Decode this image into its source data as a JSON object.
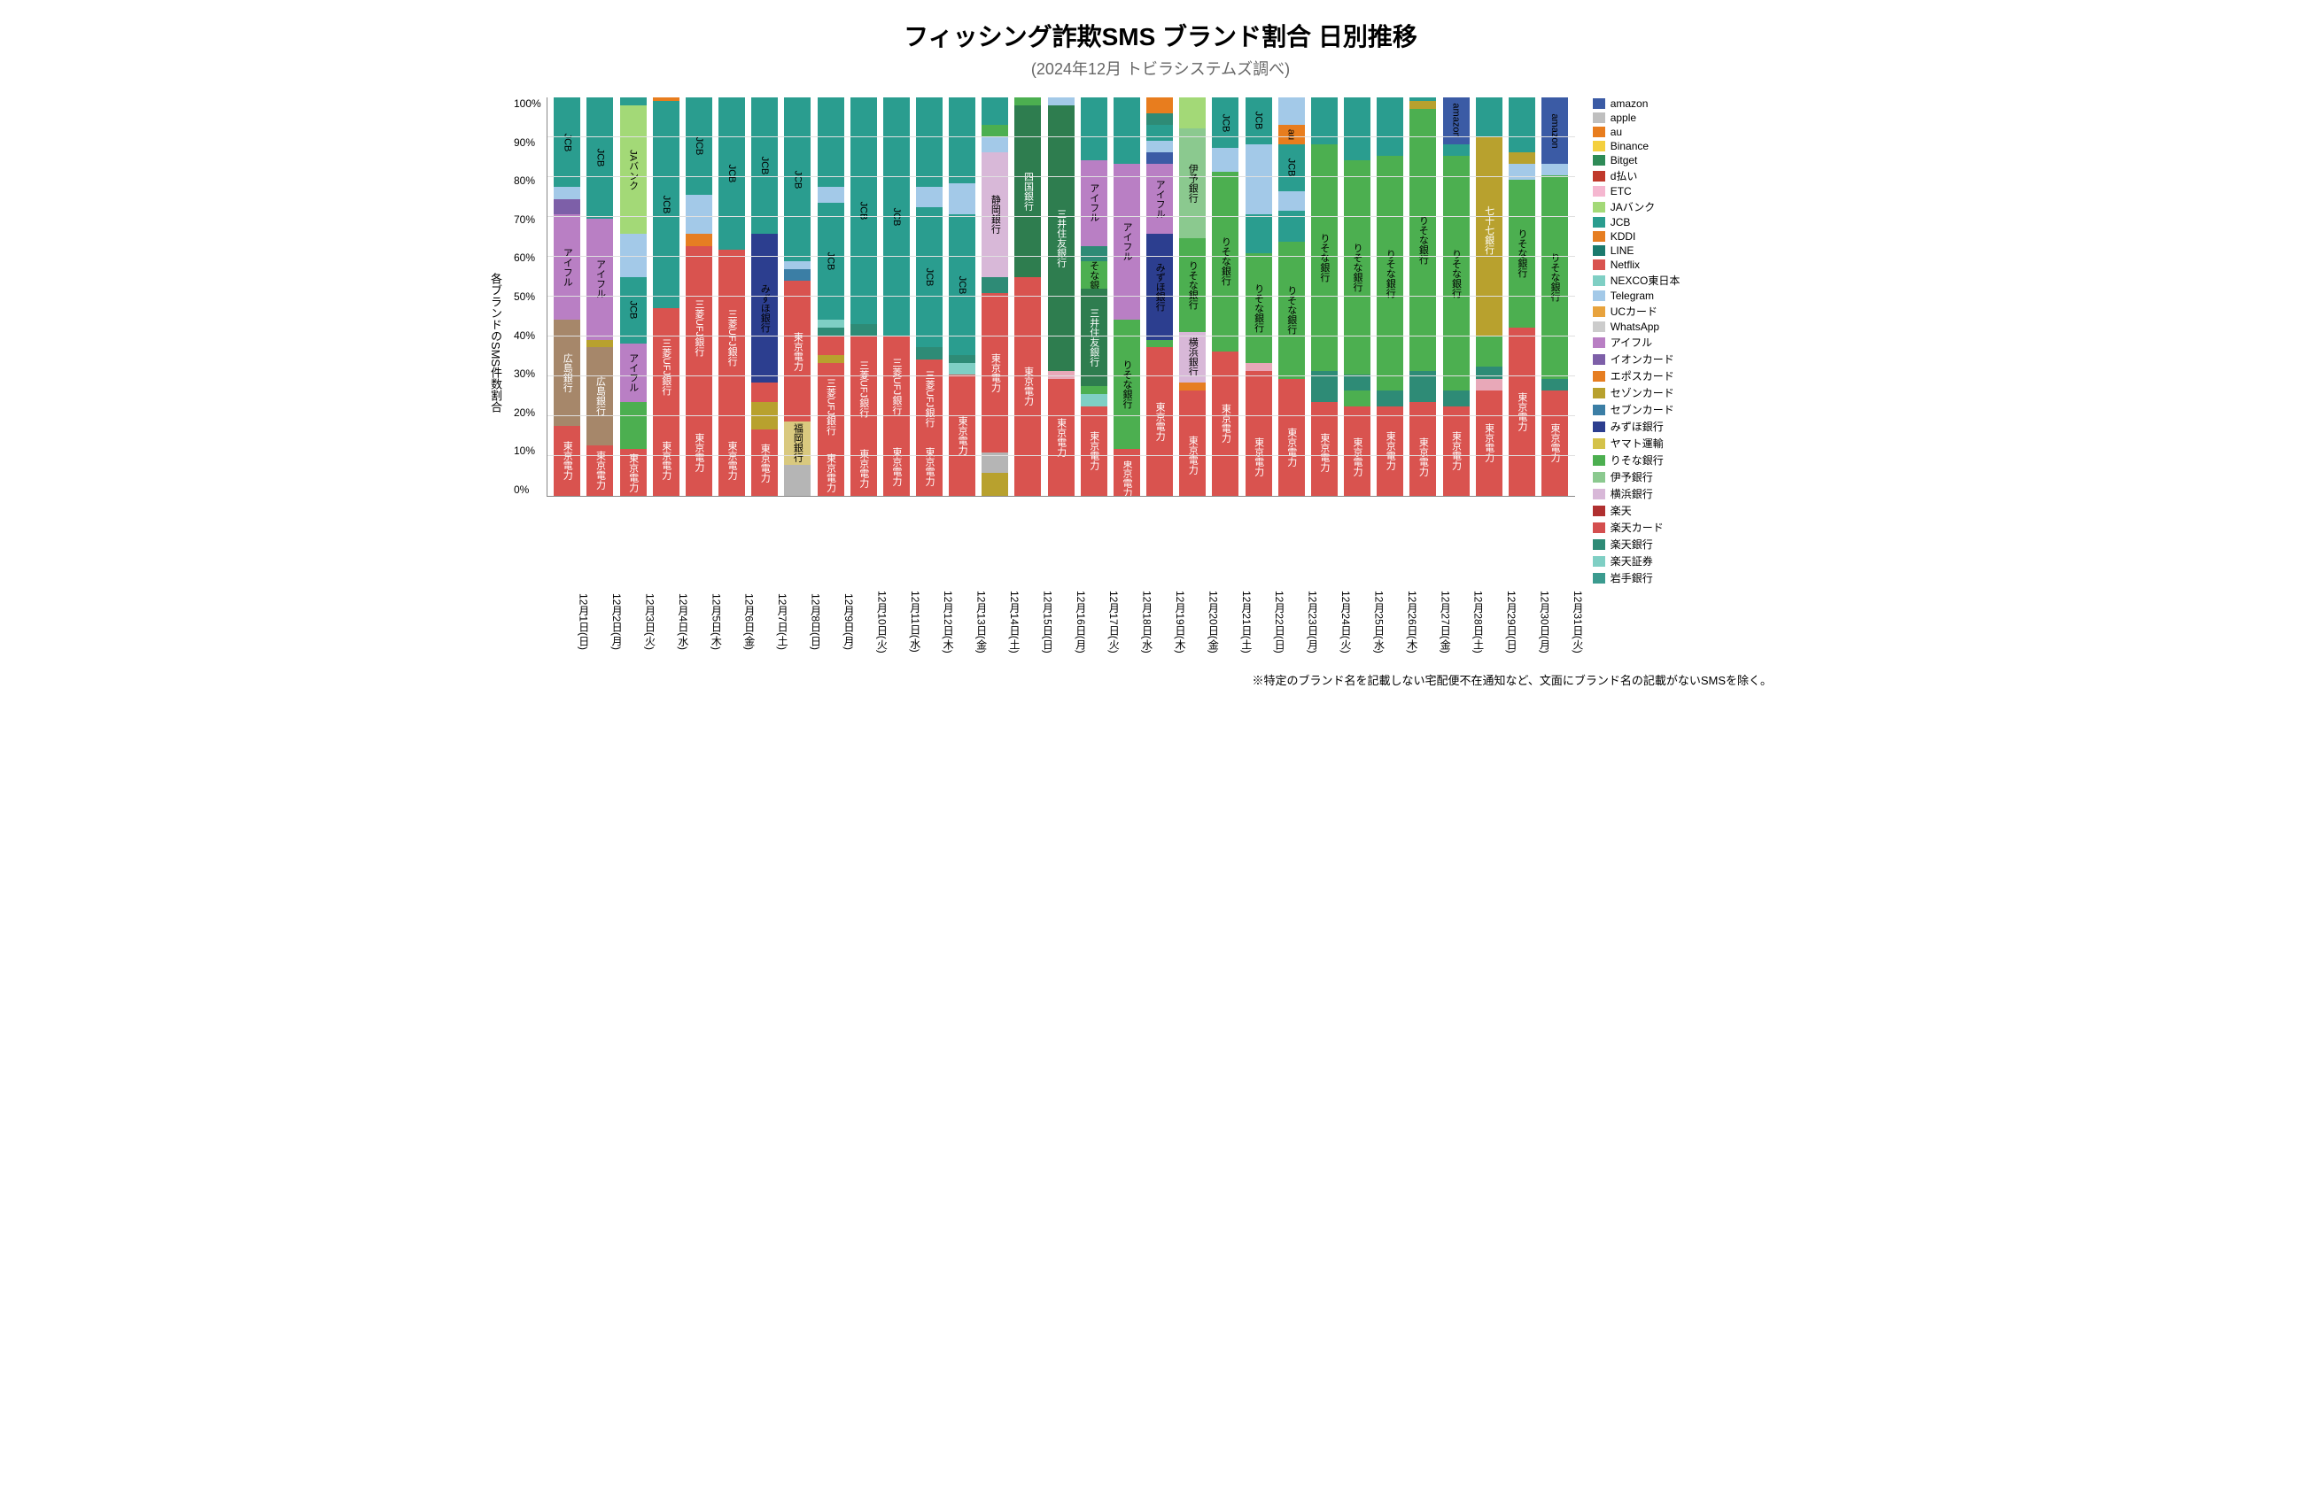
{
  "title": "フィッシング詐欺SMS ブランド割合 日別推移",
  "title_fontsize": 28,
  "subtitle": "(2024年12月 トビラシステムズ調べ)",
  "subtitle_fontsize": 18,
  "ylabel": "各ブランドのSMS件数割合",
  "footnote": "※特定のブランド名を記載しない宅配便不在通知など、文面にブランド名の記載がないSMSを除く。",
  "chart": {
    "type": "stacked-bar",
    "ylim": [
      0,
      100
    ],
    "ytick_step": 10,
    "ytick_suffix": "%",
    "background_color": "#ffffff",
    "grid_color": "#e0e0e0",
    "bar_width": 0.8,
    "label_fontsize": 11,
    "axis_fontsize": 12
  },
  "brands": {
    "amazon": {
      "label": "amazon",
      "color": "#3b5ba5"
    },
    "apple": {
      "label": "apple",
      "color": "#bfbfbf"
    },
    "au": {
      "label": "au",
      "color": "#e87d1e"
    },
    "Binance": {
      "label": "Binance",
      "color": "#f4d03f"
    },
    "Bitget": {
      "label": "Bitget",
      "color": "#2e8b57"
    },
    "dbarai": {
      "label": "d払い",
      "color": "#c0392b"
    },
    "ETC": {
      "label": "ETC",
      "color": "#f5b7d0"
    },
    "JAbank": {
      "label": "JAバンク",
      "color": "#a3d977"
    },
    "JCB": {
      "label": "JCB",
      "color": "#2a9d8f"
    },
    "KDDI": {
      "label": "KDDI",
      "color": "#e67e22"
    },
    "LINE": {
      "label": "LINE",
      "color": "#1b7a6e"
    },
    "Netflix": {
      "label": "Netflix",
      "color": "#d9534f"
    },
    "NEXCO": {
      "label": "NEXCO東日本",
      "color": "#7fcfc4"
    },
    "Telegram": {
      "label": "Telegram",
      "color": "#a3c9e8"
    },
    "UCcard": {
      "label": "UCカード",
      "color": "#e8a33d"
    },
    "WhatsApp": {
      "label": "WhatsApp",
      "color": "#cccccc"
    },
    "aiful": {
      "label": "アイフル",
      "color": "#b97fc4"
    },
    "aeon": {
      "label": "イオンカード",
      "color": "#7d5fa8"
    },
    "epos": {
      "label": "エポスカード",
      "color": "#e67e22"
    },
    "saison": {
      "label": "セゾンカード",
      "color": "#b8a12e"
    },
    "seven": {
      "label": "セブンカード",
      "color": "#3b7ea5"
    },
    "mizuho": {
      "label": "みずほ銀行",
      "color": "#2c3e8f"
    },
    "yamato": {
      "label": "ヤマト運輸",
      "color": "#d4c24a"
    },
    "resona": {
      "label": "りそな銀行",
      "color": "#4caf50"
    },
    "iyo": {
      "label": "伊予銀行",
      "color": "#8bc98f"
    },
    "yokohama": {
      "label": "横浜銀行",
      "color": "#d8b8d8"
    },
    "rakuten": {
      "label": "楽天",
      "color": "#b03030"
    },
    "rakutencard": {
      "label": "楽天カード",
      "color": "#d44f4f"
    },
    "rakutenbank": {
      "label": "楽天銀行",
      "color": "#2e8b76"
    },
    "rakutensec": {
      "label": "楽天証券",
      "color": "#7fcfc4"
    },
    "iwate": {
      "label": "岩手銀行",
      "color": "#3b9b8f"
    },
    "tepco": {
      "label": "東京電力",
      "color": "#d9534f",
      "text": "#ffffff"
    },
    "hiroshima": {
      "label": "広島銀行",
      "color": "#a6876a",
      "text": "#ffffff"
    },
    "mufg": {
      "label": "三菱UFJ銀行",
      "color": "#d9534f",
      "text": "#ffffff"
    },
    "fukuoka": {
      "label": "福岡銀行",
      "color": "#d9c97f"
    },
    "shizuoka": {
      "label": "静岡銀行",
      "color": "#d8b8d8"
    },
    "shikoku": {
      "label": "四国銀行",
      "color": "#2e7d4f",
      "text": "#ffffff"
    },
    "smbc": {
      "label": "三井住友銀行",
      "color": "#2e7d4f",
      "text": "#ffffff"
    },
    "shichiju": {
      "label": "七十七銀行",
      "color": "#b8a12e",
      "text": "#ffffff"
    },
    "other_gray": {
      "label": "",
      "color": "#b5b5b5"
    },
    "other_pink": {
      "label": "",
      "color": "#e8a8b8"
    }
  },
  "legend_order": [
    "amazon",
    "apple",
    "au",
    "Binance",
    "Bitget",
    "dbarai",
    "ETC",
    "JAbank",
    "JCB",
    "KDDI",
    "LINE",
    "Netflix",
    "NEXCO",
    "Telegram",
    "UCcard",
    "WhatsApp",
    "aiful",
    "aeon",
    "epos",
    "saison",
    "seven",
    "mizuho",
    "yamato",
    "resona",
    "iyo",
    "yokohama",
    "rakuten",
    "rakutencard",
    "rakutenbank",
    "rakutensec",
    "iwate"
  ],
  "days": [
    {
      "label": "12月1日(日)",
      "stack": [
        {
          "b": "tepco",
          "v": 18,
          "show": true
        },
        {
          "b": "hiroshima",
          "v": 27,
          "show": true
        },
        {
          "b": "aiful",
          "v": 27,
          "show": true
        },
        {
          "b": "aeon",
          "v": 4
        },
        {
          "b": "Telegram",
          "v": 3
        },
        {
          "b": "JCB",
          "v": 23,
          "show": true
        }
      ]
    },
    {
      "label": "12月2日(月)",
      "stack": [
        {
          "b": "tepco",
          "v": 13,
          "show": true
        },
        {
          "b": "hiroshima",
          "v": 25,
          "show": true
        },
        {
          "b": "saison",
          "v": 2
        },
        {
          "b": "aiful",
          "v": 31,
          "show": true
        },
        {
          "b": "JCB",
          "v": 31,
          "show": true
        }
      ]
    },
    {
      "label": "12月3日(火)",
      "stack": [
        {
          "b": "tepco",
          "v": 12,
          "show": true
        },
        {
          "b": "resona",
          "v": 12
        },
        {
          "b": "aiful",
          "v": 15,
          "show": true
        },
        {
          "b": "JCB",
          "v": 17,
          "show": true
        },
        {
          "b": "Telegram",
          "v": 11
        },
        {
          "b": "JAbank",
          "v": 33,
          "show": true
        },
        {
          "b": "JCB",
          "v": 2
        }
      ]
    },
    {
      "label": "12月4日(水)",
      "stack": [
        {
          "b": "tepco",
          "v": 18,
          "show": true
        },
        {
          "b": "mufg",
          "v": 30,
          "show": true
        },
        {
          "b": "JCB",
          "v": 53,
          "show": true
        },
        {
          "b": "au",
          "v": 1
        }
      ]
    },
    {
      "label": "12月5日(木)",
      "stack": [
        {
          "b": "tepco",
          "v": 22,
          "show": true
        },
        {
          "b": "mufg",
          "v": 42,
          "show": true
        },
        {
          "b": "epos",
          "v": 3
        },
        {
          "b": "Telegram",
          "v": 10
        },
        {
          "b": "JCB",
          "v": 25,
          "show": true
        }
      ]
    },
    {
      "label": "12月6日(金)",
      "stack": [
        {
          "b": "tepco",
          "v": 18,
          "show": true
        },
        {
          "b": "mufg",
          "v": 45,
          "show": true
        },
        {
          "b": "JCB",
          "v": 39,
          "show": true
        }
      ]
    },
    {
      "label": "12月7日(土)",
      "stack": [
        {
          "b": "tepco",
          "v": 17,
          "show": true
        },
        {
          "b": "saison",
          "v": 7
        },
        {
          "b": "Netflix",
          "v": 5
        },
        {
          "b": "mizuho",
          "v": 38,
          "show": true
        },
        {
          "b": "JCB",
          "v": 35,
          "show": true
        }
      ]
    },
    {
      "label": "12月8日(日)",
      "stack": [
        {
          "b": "other_gray",
          "v": 8
        },
        {
          "b": "fukuoka",
          "v": 11,
          "show": true
        },
        {
          "b": "tepco",
          "v": 36,
          "show": true
        },
        {
          "b": "seven",
          "v": 3
        },
        {
          "b": "Telegram",
          "v": 2
        },
        {
          "b": "JCB",
          "v": 42,
          "show": true
        }
      ]
    },
    {
      "label": "12月9日(月)",
      "stack": [
        {
          "b": "tepco",
          "v": 12,
          "show": true
        },
        {
          "b": "mufg",
          "v": 22,
          "show": true
        },
        {
          "b": "saison",
          "v": 2
        },
        {
          "b": "Netflix",
          "v": 5
        },
        {
          "b": "rakutenbank",
          "v": 2
        },
        {
          "b": "NEXCO",
          "v": 2
        },
        {
          "b": "JCB",
          "v": 30,
          "show": true
        },
        {
          "b": "Telegram",
          "v": 4
        },
        {
          "b": "JCB",
          "v": 23
        }
      ]
    },
    {
      "label": "12月10日(火)",
      "stack": [
        {
          "b": "tepco",
          "v": 14,
          "show": true
        },
        {
          "b": "mufg",
          "v": 27,
          "show": true
        },
        {
          "b": "rakutenbank",
          "v": 3
        },
        {
          "b": "JCB",
          "v": 58,
          "show": true
        }
      ]
    },
    {
      "label": "12月11日(水)",
      "stack": [
        {
          "b": "tepco",
          "v": 15,
          "show": true
        },
        {
          "b": "mufg",
          "v": 26,
          "show": true
        },
        {
          "b": "JCB",
          "v": 61,
          "show": true
        }
      ]
    },
    {
      "label": "12月12日(木)",
      "stack": [
        {
          "b": "tepco",
          "v": 15,
          "show": true
        },
        {
          "b": "mufg",
          "v": 20,
          "show": true
        },
        {
          "b": "rakutenbank",
          "v": 3
        },
        {
          "b": "JCB",
          "v": 36,
          "show": true
        },
        {
          "b": "Telegram",
          "v": 5
        },
        {
          "b": "JCB",
          "v": 23
        }
      ]
    },
    {
      "label": "12月13日(金)",
      "stack": [
        {
          "b": "tepco",
          "v": 31,
          "show": true
        },
        {
          "b": "NEXCO",
          "v": 3
        },
        {
          "b": "rakutenbank",
          "v": 2
        },
        {
          "b": "JCB",
          "v": 36,
          "show": true
        },
        {
          "b": "Telegram",
          "v": 8
        },
        {
          "b": "JCB",
          "v": 22
        }
      ]
    },
    {
      "label": "12月14日(土)",
      "stack": [
        {
          "b": "saison",
          "v": 6
        },
        {
          "b": "other_gray",
          "v": 5
        },
        {
          "b": "tepco",
          "v": 41,
          "show": true
        },
        {
          "b": "rakutenbank",
          "v": 4
        },
        {
          "b": "shizuoka",
          "v": 32,
          "show": true
        },
        {
          "b": "Telegram",
          "v": 4
        },
        {
          "b": "resona",
          "v": 3
        },
        {
          "b": "JCB",
          "v": 7
        }
      ]
    },
    {
      "label": "12月15日(日)",
      "stack": [
        {
          "b": "tepco",
          "v": 56,
          "show": true
        },
        {
          "b": "shikoku",
          "v": 44,
          "show": true
        },
        {
          "b": "resona",
          "v": 2
        }
      ]
    },
    {
      "label": "12月16日(月)",
      "stack": [
        {
          "b": "tepco",
          "v": 30,
          "show": true
        },
        {
          "b": "other_pink",
          "v": 2
        },
        {
          "b": "smbc",
          "v": 68,
          "show": true
        },
        {
          "b": "Telegram",
          "v": 2
        }
      ]
    },
    {
      "label": "12月17日(火)",
      "stack": [
        {
          "b": "tepco",
          "v": 23,
          "show": true
        },
        {
          "b": "NEXCO",
          "v": 3
        },
        {
          "b": "resona",
          "v": 2
        },
        {
          "b": "smbc",
          "v": 25,
          "show": true
        },
        {
          "b": "resona",
          "v": 7,
          "show": true
        },
        {
          "b": "rakutenbank",
          "v": 4
        },
        {
          "b": "aiful",
          "v": 22,
          "show": true
        },
        {
          "b": "JCB",
          "v": 16
        }
      ]
    },
    {
      "label": "12月18日(水)",
      "stack": [
        {
          "b": "tepco",
          "v": 9,
          "show": true
        },
        {
          "b": "Netflix",
          "v": 3
        },
        {
          "b": "resona",
          "v": 33,
          "show": true
        },
        {
          "b": "aiful",
          "v": 40,
          "show": true
        },
        {
          "b": "JCB",
          "v": 17
        }
      ]
    },
    {
      "label": "12月19日(木)",
      "stack": [
        {
          "b": "tepco",
          "v": 38,
          "show": true
        },
        {
          "b": "resona",
          "v": 2
        },
        {
          "b": "mizuho",
          "v": 27,
          "show": true
        },
        {
          "b": "aiful",
          "v": 18,
          "show": true
        },
        {
          "b": "amazon",
          "v": 3
        },
        {
          "b": "Telegram",
          "v": 3
        },
        {
          "b": "JCB",
          "v": 4
        },
        {
          "b": "rakutenbank",
          "v": 3
        },
        {
          "b": "au",
          "v": 4
        }
      ]
    },
    {
      "label": "12月20日(金)",
      "stack": [
        {
          "b": "tepco",
          "v": 21,
          "show": true
        },
        {
          "b": "Netflix",
          "v": 6
        },
        {
          "b": "epos",
          "v": 2
        },
        {
          "b": "yokohama",
          "v": 13,
          "show": true
        },
        {
          "b": "resona",
          "v": 24,
          "show": true
        },
        {
          "b": "iyo",
          "v": 28,
          "show": true
        },
        {
          "b": "JAbank",
          "v": 8
        }
      ]
    },
    {
      "label": "12月21日(土)",
      "stack": [
        {
          "b": "tepco",
          "v": 37,
          "show": true
        },
        {
          "b": "resona",
          "v": 46,
          "show": true
        },
        {
          "b": "Telegram",
          "v": 6
        },
        {
          "b": "JCB",
          "v": 13,
          "show": true
        }
      ]
    },
    {
      "label": "12月22日(日)",
      "stack": [
        {
          "b": "tepco",
          "v": 20,
          "show": true
        },
        {
          "b": "Netflix",
          "v": 12
        },
        {
          "b": "other_pink",
          "v": 2
        },
        {
          "b": "resona",
          "v": 28,
          "show": true
        },
        {
          "b": "JCB",
          "v": 10
        },
        {
          "b": "Telegram",
          "v": 18
        },
        {
          "b": "JCB",
          "v": 12,
          "show": true
        }
      ]
    },
    {
      "label": "12月23日(月)",
      "stack": [
        {
          "b": "tepco",
          "v": 25,
          "show": true
        },
        {
          "b": "Netflix",
          "v": 5
        },
        {
          "b": "resona",
          "v": 35,
          "show": true
        },
        {
          "b": "JCB",
          "v": 8
        },
        {
          "b": "Telegram",
          "v": 5
        },
        {
          "b": "JCB",
          "v": 12,
          "show": true
        },
        {
          "b": "au",
          "v": 5,
          "show": true
        },
        {
          "b": "Telegram",
          "v": 7
        }
      ]
    },
    {
      "label": "12月24日(火)",
      "stack": [
        {
          "b": "tepco",
          "v": 22,
          "show": true
        },
        {
          "b": "Netflix",
          "v": 2
        },
        {
          "b": "rakutenbank",
          "v": 8
        },
        {
          "b": "resona",
          "v": 58,
          "show": true
        },
        {
          "b": "JCB",
          "v": 12
        }
      ]
    },
    {
      "label": "12月25日(水)",
      "stack": [
        {
          "b": "tepco",
          "v": 20,
          "show": true
        },
        {
          "b": "Netflix",
          "v": 3
        },
        {
          "b": "resona",
          "v": 4
        },
        {
          "b": "rakutenbank",
          "v": 4
        },
        {
          "b": "resona",
          "v": 55,
          "show": true
        },
        {
          "b": "JCB",
          "v": 16
        }
      ]
    },
    {
      "label": "12月26日(木)",
      "stack": [
        {
          "b": "tepco",
          "v": 23,
          "show": true
        },
        {
          "b": "rakutenbank",
          "v": 4
        },
        {
          "b": "resona",
          "v": 60,
          "show": true
        },
        {
          "b": "JCB",
          "v": 15
        }
      ]
    },
    {
      "label": "12月27日(金)",
      "stack": [
        {
          "b": "tepco",
          "v": 20,
          "show": true
        },
        {
          "b": "Netflix",
          "v": 4
        },
        {
          "b": "rakutenbank",
          "v": 8
        },
        {
          "b": "resona",
          "v": 67,
          "show": true
        },
        {
          "b": "saison",
          "v": 2
        },
        {
          "b": "JCB",
          "v": 1
        }
      ]
    },
    {
      "label": "12月28日(土)",
      "stack": [
        {
          "b": "tepco",
          "v": 23,
          "show": true
        },
        {
          "b": "rakutenbank",
          "v": 4
        },
        {
          "b": "resona",
          "v": 60,
          "show": true
        },
        {
          "b": "JCB",
          "v": 3
        },
        {
          "b": "amazon",
          "v": 12,
          "show": true
        }
      ]
    },
    {
      "label": "12月29日(日)",
      "stack": [
        {
          "b": "tepco",
          "v": 27,
          "show": true
        },
        {
          "b": "other_pink",
          "v": 3
        },
        {
          "b": "rakutenbank",
          "v": 3
        },
        {
          "b": "resona",
          "v": 8
        },
        {
          "b": "saison",
          "v": 3
        },
        {
          "b": "shichiju",
          "v": 48,
          "show": true
        },
        {
          "b": "JCB",
          "v": 10
        }
      ]
    },
    {
      "label": "12月30日(月)",
      "stack": [
        {
          "b": "tepco",
          "v": 43,
          "show": true
        },
        {
          "b": "resona",
          "v": 38,
          "show": true
        },
        {
          "b": "Telegram",
          "v": 4
        },
        {
          "b": "saison",
          "v": 3
        },
        {
          "b": "JCB",
          "v": 14
        }
      ]
    },
    {
      "label": "12月31日(火)",
      "stack": [
        {
          "b": "tepco",
          "v": 27,
          "show": true
        },
        {
          "b": "rakutenbank",
          "v": 3
        },
        {
          "b": "resona",
          "v": 52,
          "show": true
        },
        {
          "b": "Telegram",
          "v": 3
        },
        {
          "b": "amazon",
          "v": 17,
          "show": true
        }
      ]
    }
  ]
}
